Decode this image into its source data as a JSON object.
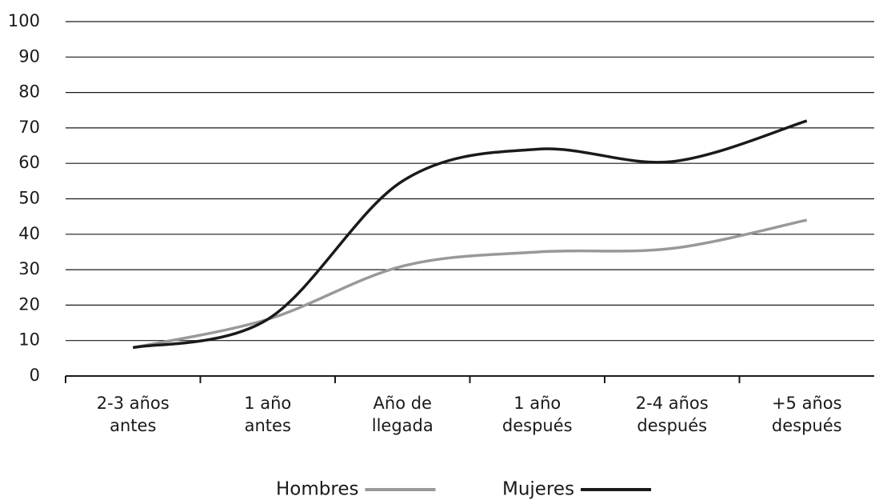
{
  "chart_data": {
    "type": "line",
    "categories": [
      "2-3 años antes",
      "1 año antes",
      "Año de llegada",
      "1 año después",
      "2-4 años después",
      "+5 años después"
    ],
    "series": [
      {
        "name": "Hombres",
        "color": "#999999",
        "values": [
          8,
          16,
          31,
          35,
          36,
          44
        ]
      },
      {
        "name": "Mujeres",
        "color": "#1a1a1a",
        "values": [
          8,
          16,
          55,
          64,
          60.5,
          72
        ]
      }
    ],
    "ylim": [
      0,
      100
    ],
    "yticks": [
      0,
      10,
      20,
      30,
      40,
      50,
      60,
      70,
      80,
      90,
      100
    ],
    "grid": true,
    "legend": "bottom"
  }
}
